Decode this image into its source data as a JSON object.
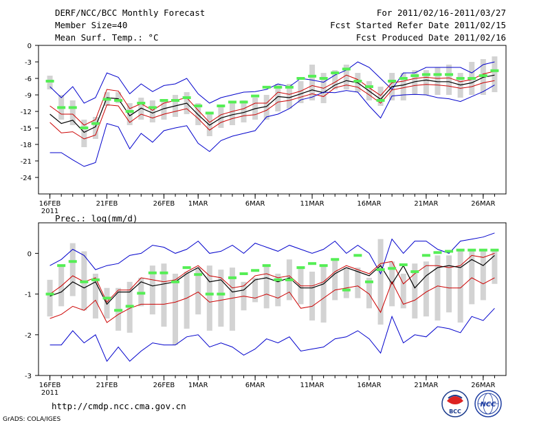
{
  "header": {
    "title": "DERF/NCC/BCC Monthly Forecast",
    "member": "Member Size=40",
    "variable": "Mean Surf. Temp.: °C",
    "period": "For 2011/02/16-2011/03/27",
    "refer": "Fcst Started Refer Date 2011/02/15",
    "produced": "Fcst Produced Date 2011/02/16"
  },
  "footer": {
    "url": "http://cmdp.ncc.cma.gov.cn",
    "grads": "GrADS: COLA/IGES"
  },
  "logos": {
    "bcc": "BCC",
    "ncc": "NCC"
  },
  "colors": {
    "blue": "#0000cc",
    "red": "#cc0000",
    "green": "#55ee55",
    "box": "#d3d3d3",
    "mean": "#000000"
  },
  "chart_data": [
    {
      "type": "line",
      "title": "Mean Surf. Temp.: °C",
      "xlabel": "",
      "ylabel": "°C",
      "xlim": [
        1,
        40
      ],
      "ylim": [
        -27,
        0
      ],
      "yticks": [
        0,
        -3,
        -6,
        -9,
        -12,
        -15,
        -18,
        -21,
        -24
      ],
      "xticks": [
        {
          "day": 1,
          "label": "16FEB"
        },
        {
          "day": 6,
          "label": "21FEB"
        },
        {
          "day": 11,
          "label": "26FEB"
        },
        {
          "day": 14,
          "label": "1MAR"
        },
        {
          "day": 19,
          "label": "6MAR"
        },
        {
          "day": 24,
          "label": "11MAR"
        },
        {
          "day": 29,
          "label": "16MAR"
        },
        {
          "day": 34,
          "label": "21MAR"
        },
        {
          "day": 39,
          "label": "26MAR"
        }
      ],
      "year_label": "2011",
      "series": [
        {
          "name": "max",
          "color": "blue",
          "values": [
            -7.5,
            -9.5,
            -7.5,
            -10.5,
            -9.5,
            -5.0,
            -5.8,
            -8.8,
            -7.0,
            -8.4,
            -7.3,
            -7.0,
            -6.0,
            -8.8,
            -10.5,
            -9.5,
            -9.0,
            -8.5,
            -8.4,
            -8.0,
            -7.0,
            -7.5,
            -6.0,
            -6.3,
            -6.7,
            -5.4,
            -4.5,
            -3.0,
            -4.0,
            -6.0,
            -8.0,
            -5.0,
            -5.0,
            -4.0,
            -4.0,
            -4.0,
            -4.0,
            -5.0,
            -3.5,
            -3.0
          ]
        },
        {
          "name": "upper",
          "color": "red",
          "values": [
            -11.0,
            -12.5,
            -12.5,
            -14.5,
            -13.5,
            -8.0,
            -8.3,
            -11.5,
            -10.6,
            -11.8,
            -10.5,
            -10.0,
            -9.5,
            -11.8,
            -14.0,
            -12.6,
            -12.0,
            -11.5,
            -10.5,
            -10.5,
            -8.5,
            -8.9,
            -8.3,
            -7.3,
            -7.8,
            -6.7,
            -5.4,
            -6.2,
            -7.7,
            -9.1,
            -6.8,
            -6.5,
            -6.0,
            -5.8,
            -6.0,
            -5.9,
            -6.6,
            -6.2,
            -5.2,
            -4.7
          ]
        },
        {
          "name": "mean",
          "color": "mean",
          "values": [
            -12.5,
            -14.2,
            -13.6,
            -15.8,
            -14.8,
            -9.5,
            -9.7,
            -12.8,
            -11.4,
            -12.3,
            -11.5,
            -11.0,
            -10.5,
            -12.6,
            -14.5,
            -13.2,
            -12.6,
            -12.2,
            -11.5,
            -11.1,
            -9.3,
            -9.5,
            -8.8,
            -8.1,
            -8.6,
            -7.2,
            -6.4,
            -6.8,
            -8.3,
            -9.8,
            -7.5,
            -7.2,
            -6.6,
            -6.3,
            -6.6,
            -6.6,
            -7.2,
            -6.8,
            -5.8,
            -5.4
          ]
        },
        {
          "name": "lower",
          "color": "red",
          "values": [
            -14.0,
            -15.9,
            -15.7,
            -17.0,
            -16.3,
            -10.8,
            -11.0,
            -14.0,
            -12.5,
            -13.2,
            -12.5,
            -12.0,
            -11.5,
            -13.3,
            -15.4,
            -14.0,
            -13.3,
            -12.8,
            -12.6,
            -11.8,
            -10.3,
            -10.0,
            -9.4,
            -8.8,
            -9.3,
            -7.7,
            -7.2,
            -7.6,
            -9.0,
            -10.5,
            -8.1,
            -7.7,
            -7.3,
            -7.1,
            -7.2,
            -7.4,
            -7.8,
            -7.5,
            -6.8,
            -6.4
          ]
        },
        {
          "name": "min",
          "color": "blue",
          "values": [
            -19.5,
            -19.5,
            -20.8,
            -22.0,
            -21.3,
            -14.2,
            -14.8,
            -18.8,
            -16.0,
            -17.6,
            -15.5,
            -15.0,
            -14.6,
            -17.8,
            -19.3,
            -17.3,
            -16.5,
            -16.0,
            -15.5,
            -13.0,
            -12.5,
            -11.5,
            -9.9,
            -9.4,
            -8.5,
            -8.6,
            -8.2,
            -8.5,
            -11.0,
            -13.2,
            -9.2,
            -9.0,
            -8.9,
            -9.0,
            -9.5,
            -9.7,
            -10.2,
            -9.3,
            -8.4,
            -7.2
          ]
        }
      ],
      "range_bars": [
        [
          -5.5,
          -8.0
        ],
        [
          -9.0,
          -13.5
        ],
        [
          -10.0,
          -14.5
        ],
        [
          -13.5,
          -18.5
        ],
        [
          -13.0,
          -17.0
        ],
        [
          -8.5,
          -11.0
        ],
        [
          -8.5,
          -10.5
        ],
        [
          -10.5,
          -14.5
        ],
        [
          -9.5,
          -13.5
        ],
        [
          -10.0,
          -14.0
        ],
        [
          -10.0,
          -13.5
        ],
        [
          -9.0,
          -13.0
        ],
        [
          -8.5,
          -12.5
        ],
        [
          -10.5,
          -14.5
        ],
        [
          -12.5,
          -16.5
        ],
        [
          -11.0,
          -15.0
        ],
        [
          -10.5,
          -14.5
        ],
        [
          -10.0,
          -14.0
        ],
        [
          -9.5,
          -13.5
        ],
        [
          -9.0,
          -13.5
        ],
        [
          -7.0,
          -12.0
        ],
        [
          -7.0,
          -11.5
        ],
        [
          -6.5,
          -10.5
        ],
        [
          -3.5,
          -10.0
        ],
        [
          -5.0,
          -10.5
        ],
        [
          -4.5,
          -8.0
        ],
        [
          -3.5,
          -8.0
        ],
        [
          -5.0,
          -8.5
        ],
        [
          -6.5,
          -10.0
        ],
        [
          -7.5,
          -11.0
        ],
        [
          -5.0,
          -10.0
        ],
        [
          -5.0,
          -10.0
        ],
        [
          -4.5,
          -9.0
        ],
        [
          -4.5,
          -9.0
        ],
        [
          -4.0,
          -9.0
        ],
        [
          -3.5,
          -9.0
        ],
        [
          -5.0,
          -9.5
        ],
        [
          -3.0,
          -9.0
        ],
        [
          -2.5,
          -9.0
        ],
        [
          -2.0,
          -8.5
        ]
      ],
      "control": [
        -6.5,
        -11.3,
        -11.3,
        -15.0,
        -14.2,
        -9.8,
        -10.0,
        -12.0,
        -10.5,
        -11.3,
        -10.0,
        -10.0,
        -9.5,
        -11.0,
        -12.3,
        -11.0,
        -10.3,
        -10.3,
        -9.2,
        -7.6,
        -7.6,
        -7.6,
        -6.0,
        -5.6,
        -6.0,
        -5.0,
        -4.3,
        -6.5,
        -7.5,
        -10.0,
        -6.5,
        -6.0,
        -5.5,
        -5.3,
        -5.3,
        -5.3,
        -6.0,
        -6.0,
        -5.5,
        -4.6
      ]
    },
    {
      "type": "line",
      "title": "Prec.: log(mm/d)",
      "xlabel": "",
      "ylabel": "log(mm/d)",
      "xlim": [
        1,
        40
      ],
      "ylim": [
        -3,
        0.75
      ],
      "yticks": [
        0,
        -1,
        -2,
        -3
      ],
      "xticks": [
        {
          "day": 1,
          "label": "16FEB"
        },
        {
          "day": 6,
          "label": "21FEB"
        },
        {
          "day": 11,
          "label": "26FEB"
        },
        {
          "day": 14,
          "label": "1MAR"
        },
        {
          "day": 19,
          "label": "6MAR"
        },
        {
          "day": 24,
          "label": "11MAR"
        },
        {
          "day": 29,
          "label": "16MAR"
        },
        {
          "day": 34,
          "label": "21MAR"
        },
        {
          "day": 39,
          "label": "26MAR"
        }
      ],
      "year_label": "2011",
      "series": [
        {
          "name": "max",
          "color": "blue",
          "values": [
            -0.3,
            -0.15,
            0.1,
            -0.05,
            -0.4,
            -0.3,
            -0.25,
            -0.05,
            0.0,
            0.2,
            0.15,
            0.0,
            0.1,
            0.3,
            0.0,
            0.05,
            0.2,
            0.0,
            0.25,
            0.15,
            0.05,
            0.2,
            0.1,
            0.0,
            0.1,
            0.3,
            0.0,
            0.2,
            0.0,
            -0.5,
            0.35,
            0.0,
            0.3,
            0.3,
            0.1,
            0.0,
            0.3,
            0.35,
            0.4,
            0.5
          ]
        },
        {
          "name": "upper",
          "color": "red",
          "values": [
            -1.0,
            -0.8,
            -0.55,
            -0.7,
            -0.6,
            -1.2,
            -0.9,
            -0.9,
            -0.6,
            -0.65,
            -0.7,
            -0.65,
            -0.45,
            -0.3,
            -0.55,
            -0.6,
            -0.85,
            -0.8,
            -0.55,
            -0.5,
            -0.6,
            -0.55,
            -0.8,
            -0.8,
            -0.7,
            -0.45,
            -0.3,
            -0.4,
            -0.5,
            -0.25,
            -0.2,
            -0.75,
            -0.5,
            -0.3,
            -0.3,
            -0.35,
            -0.3,
            -0.05,
            -0.1,
            0.0
          ]
        },
        {
          "name": "mean",
          "color": "mean",
          "values": [
            -1.05,
            -0.95,
            -0.7,
            -0.85,
            -0.7,
            -1.25,
            -0.95,
            -0.95,
            -0.7,
            -0.8,
            -0.75,
            -0.7,
            -0.5,
            -0.35,
            -0.7,
            -0.65,
            -0.95,
            -0.9,
            -0.65,
            -0.6,
            -0.7,
            -0.6,
            -0.85,
            -0.85,
            -0.75,
            -0.5,
            -0.35,
            -0.45,
            -0.55,
            -0.3,
            -0.75,
            -0.3,
            -0.85,
            -0.55,
            -0.35,
            -0.3,
            -0.35,
            -0.15,
            -0.3,
            -0.05
          ]
        },
        {
          "name": "lower",
          "color": "red",
          "values": [
            -1.6,
            -1.5,
            -1.3,
            -1.4,
            -1.15,
            -1.7,
            -1.5,
            -1.35,
            -1.25,
            -1.25,
            -1.25,
            -1.2,
            -1.1,
            -0.95,
            -1.2,
            -1.15,
            -1.1,
            -1.05,
            -1.1,
            -1.0,
            -1.1,
            -0.95,
            -1.35,
            -1.3,
            -1.1,
            -0.9,
            -0.85,
            -0.8,
            -1.0,
            -1.45,
            -0.7,
            -1.25,
            -1.15,
            -0.95,
            -0.8,
            -0.85,
            -0.85,
            -0.6,
            -0.75,
            -0.6
          ]
        },
        {
          "name": "min",
          "color": "blue",
          "values": [
            -2.25,
            -2.25,
            -1.9,
            -2.2,
            -2.0,
            -2.65,
            -2.3,
            -2.65,
            -2.4,
            -2.2,
            -2.25,
            -2.25,
            -2.05,
            -2.0,
            -2.3,
            -2.2,
            -2.3,
            -2.5,
            -2.35,
            -2.1,
            -2.2,
            -2.05,
            -2.4,
            -2.35,
            -2.3,
            -2.1,
            -2.05,
            -1.9,
            -2.1,
            -2.45,
            -1.55,
            -2.2,
            -2.0,
            -2.05,
            -1.8,
            -1.85,
            -1.95,
            -1.55,
            -1.65,
            -1.35
          ]
        }
      ],
      "range_bars": [
        [
          -0.65,
          -1.55
        ],
        [
          -0.3,
          -1.3
        ],
        [
          0.25,
          -1.05
        ],
        [
          0.05,
          -1.4
        ],
        [
          -0.5,
          -1.6
        ],
        [
          -0.85,
          -1.6
        ],
        [
          -0.85,
          -1.9
        ],
        [
          -0.7,
          -1.95
        ],
        [
          -0.6,
          -1.3
        ],
        [
          -0.3,
          -1.5
        ],
        [
          -0.25,
          -1.8
        ],
        [
          -0.5,
          -2.25
        ],
        [
          -0.45,
          -1.85
        ],
        [
          -0.35,
          -1.5
        ],
        [
          -0.3,
          -1.9
        ],
        [
          -0.4,
          -1.8
        ],
        [
          -0.35,
          -1.9
        ],
        [
          -0.7,
          -1.4
        ],
        [
          -0.6,
          -1.2
        ],
        [
          -0.3,
          -1.35
        ],
        [
          -0.5,
          -1.3
        ],
        [
          -0.15,
          -1.15
        ],
        [
          -0.35,
          -1.25
        ],
        [
          -0.45,
          -1.65
        ],
        [
          -0.3,
          -1.7
        ],
        [
          -0.15,
          -1.15
        ],
        [
          -0.35,
          -1.1
        ],
        [
          -0.35,
          -1.1
        ],
        [
          -0.6,
          -1.35
        ],
        [
          0.35,
          -1.75
        ],
        [
          -0.2,
          -1.3
        ],
        [
          -0.5,
          -1.35
        ],
        [
          -0.25,
          -1.6
        ],
        [
          -0.2,
          -1.55
        ],
        [
          -0.05,
          -1.65
        ],
        [
          -0.05,
          -1.45
        ],
        [
          0.05,
          -1.7
        ],
        [
          0.05,
          -1.25
        ],
        [
          0.05,
          -1.15
        ],
        [
          0.1,
          -0.75
        ]
      ],
      "control": [
        -1.0,
        -0.3,
        -0.2,
        -0.7,
        -0.65,
        -1.1,
        -1.4,
        -1.3,
        -0.98,
        -0.48,
        -0.48,
        -0.7,
        -0.35,
        -0.52,
        -1.0,
        -1.0,
        -0.6,
        -0.5,
        -0.42,
        -0.3,
        -0.65,
        -0.65,
        -0.35,
        -0.25,
        -0.3,
        -0.15,
        -0.9,
        -0.05,
        -0.7,
        -0.4,
        -0.37,
        -0.28,
        -0.45,
        -0.05,
        0.02,
        0.05,
        0.08,
        0.08,
        0.08,
        0.08
      ]
    }
  ]
}
